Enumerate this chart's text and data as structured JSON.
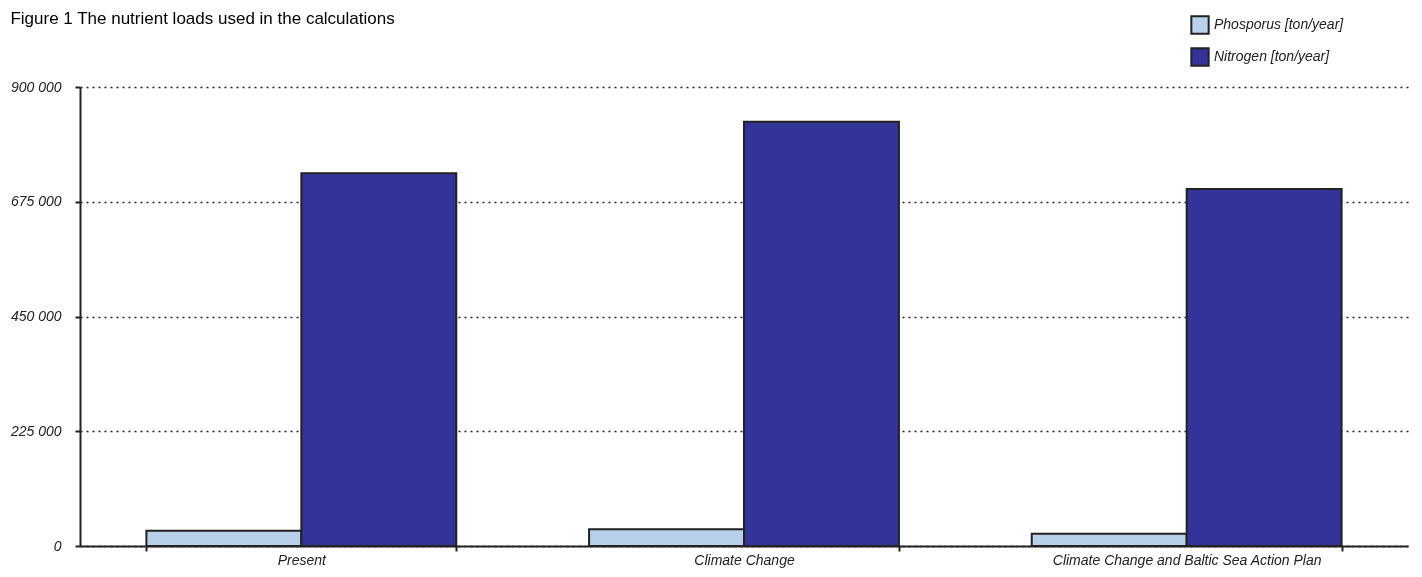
{
  "chart_data": {
    "type": "bar",
    "title": "Figure 1 The nutrient loads used in the calculations",
    "categories": [
      "Present",
      "Climate Change",
      "Climate Change and Baltic Sea Action Plan"
    ],
    "series": [
      {
        "name": "Phosporus [ton/year]",
        "color": "#b8d0ea",
        "values": [
          30000,
          33000,
          24000
        ]
      },
      {
        "name": "Nitrogen [ton/year]",
        "color": "#333399",
        "values": [
          731000,
          832000,
          700000
        ]
      }
    ],
    "ylim": [
      0,
      900000
    ],
    "yticks": [
      {
        "value": 0,
        "label": "0"
      },
      {
        "value": 225000,
        "label": "225 000"
      },
      {
        "value": 450000,
        "label": "450 000"
      },
      {
        "value": 675000,
        "label": "675 000"
      },
      {
        "value": 900000,
        "label": "900 000"
      }
    ],
    "grid": "y",
    "legend": "top right"
  }
}
